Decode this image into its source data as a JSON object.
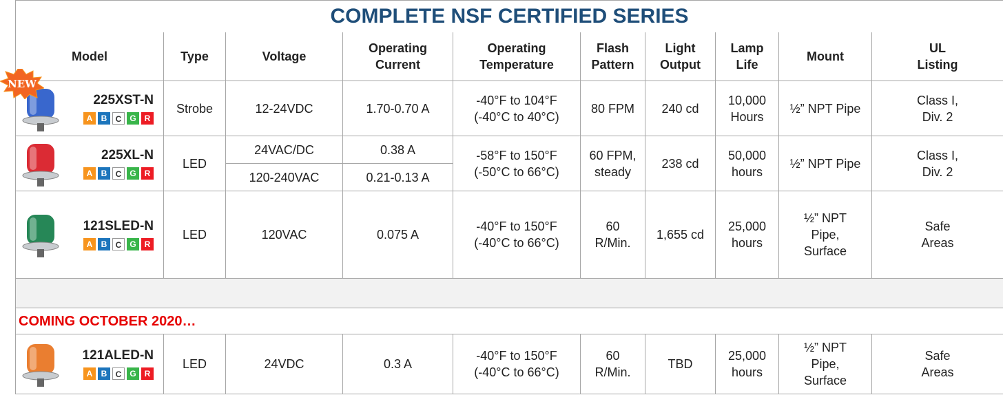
{
  "badge": "NEW",
  "title": "COMPLETE NSF CERTIFIED SERIES",
  "columns": [
    [
      "Model"
    ],
    [
      "Type"
    ],
    [
      "Voltage"
    ],
    [
      "Operating",
      "Current"
    ],
    [
      "Operating",
      "Temperature"
    ],
    [
      "Flash",
      "Pattern"
    ],
    [
      "Light",
      "Output"
    ],
    [
      "Lamp",
      "Life"
    ],
    [
      "Mount"
    ],
    [
      "UL",
      "Listing"
    ]
  ],
  "rating_badges": [
    {
      "letter": "A",
      "color": "#f7941d"
    },
    {
      "letter": "B",
      "color": "#1c75bc"
    },
    {
      "letter": "C",
      "color": "#ffffff"
    },
    {
      "letter": "G",
      "color": "#39b54a"
    },
    {
      "letter": "R",
      "color": "#ed1c24"
    }
  ],
  "products": [
    {
      "model": "225XST-N",
      "lamp_color": "#2456c8",
      "type": [
        "Strobe"
      ],
      "supply": [
        {
          "voltage": [
            "12-24VDC"
          ],
          "current": [
            "1.70-0.70 A"
          ]
        }
      ],
      "temperature": [
        "-40°F to 104°F",
        "(-40°C to 40°C)"
      ],
      "flash": [
        "80 FPM"
      ],
      "light": [
        "240 cd"
      ],
      "life": [
        "10,000",
        "Hours"
      ],
      "mount": [
        "½” NPT Pipe"
      ],
      "ul": [
        "Class I,",
        "Div. 2"
      ]
    },
    {
      "model": "225XL-N",
      "lamp_color": "#d7141e",
      "type": [
        "LED"
      ],
      "supply": [
        {
          "voltage": [
            "24VAC/DC"
          ],
          "current": [
            "0.38 A"
          ]
        },
        {
          "voltage": [
            "120-240VAC"
          ],
          "current": [
            "0.21-0.13 A"
          ]
        }
      ],
      "temperature": [
        "-58°F to 150°F",
        "(-50°C to 66°C)"
      ],
      "flash": [
        "60 FPM,",
        "steady"
      ],
      "light": [
        "238 cd"
      ],
      "life": [
        "50,000",
        "hours"
      ],
      "mount": [
        "½” NPT Pipe"
      ],
      "ul": [
        "Class I,",
        "Div. 2"
      ]
    },
    {
      "model": "121SLED-N",
      "lamp_color": "#0e7a45",
      "type": [
        "LED"
      ],
      "supply": [
        {
          "voltage": [
            "120VAC"
          ],
          "current": [
            "0.075 A"
          ]
        }
      ],
      "temperature": [
        "-40°F to 150°F",
        "(-40°C to 66°C)"
      ],
      "flash": [
        "60",
        "R/Min."
      ],
      "light": [
        "1,655 cd"
      ],
      "life": [
        "25,000",
        "hours"
      ],
      "mount": [
        "½” NPT",
        "Pipe,",
        "Surface"
      ],
      "ul": [
        "Safe",
        "Areas"
      ]
    }
  ],
  "upcoming_label": "COMING OCTOBER 2020…",
  "upcoming": [
    {
      "model": "121ALED-N",
      "lamp_color": "#e8701a",
      "type": [
        "LED"
      ],
      "supply": [
        {
          "voltage": [
            "24VDC"
          ],
          "current": [
            "0.3 A"
          ]
        }
      ],
      "temperature": [
        "-40°F to 150°F",
        "(-40°C to 66°C)"
      ],
      "flash": [
        "60",
        "R/Min."
      ],
      "light": [
        "TBD"
      ],
      "life": [
        "25,000",
        "hours"
      ],
      "mount": [
        "½” NPT",
        "Pipe,",
        "Surface"
      ],
      "ul": [
        "Safe",
        "Areas"
      ]
    }
  ]
}
